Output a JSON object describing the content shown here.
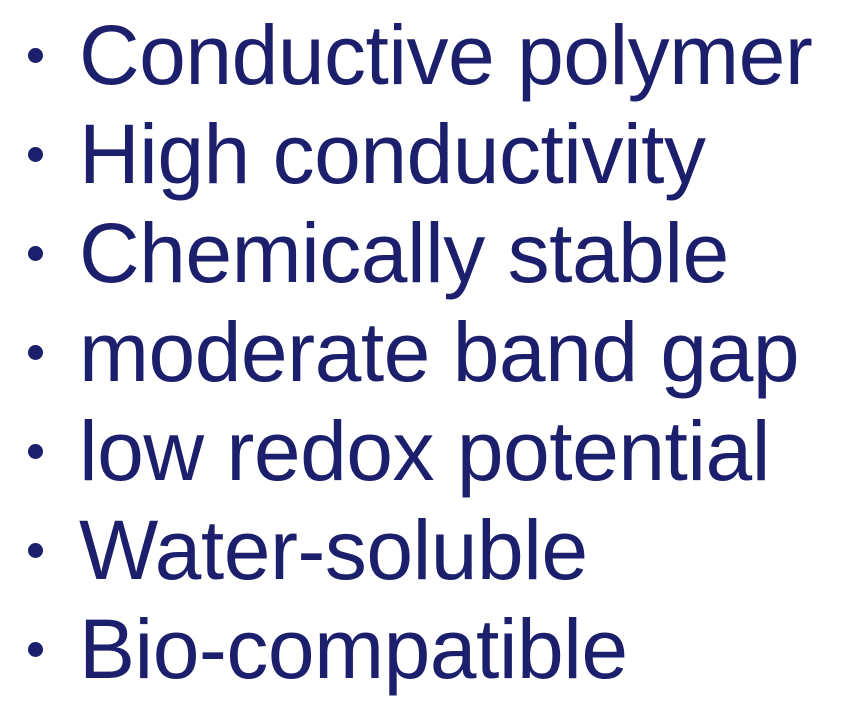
{
  "colors": {
    "text": "#1c1f6b",
    "background": "#ffffff"
  },
  "bullets": [
    {
      "label": "Conductive polymer"
    },
    {
      "label": "High conductivity"
    },
    {
      "label": "Chemically stable"
    },
    {
      "label": "moderate band gap"
    },
    {
      "label": "low redox potential"
    },
    {
      "label": "Water-soluble"
    },
    {
      "label": "Bio-compatible"
    }
  ]
}
